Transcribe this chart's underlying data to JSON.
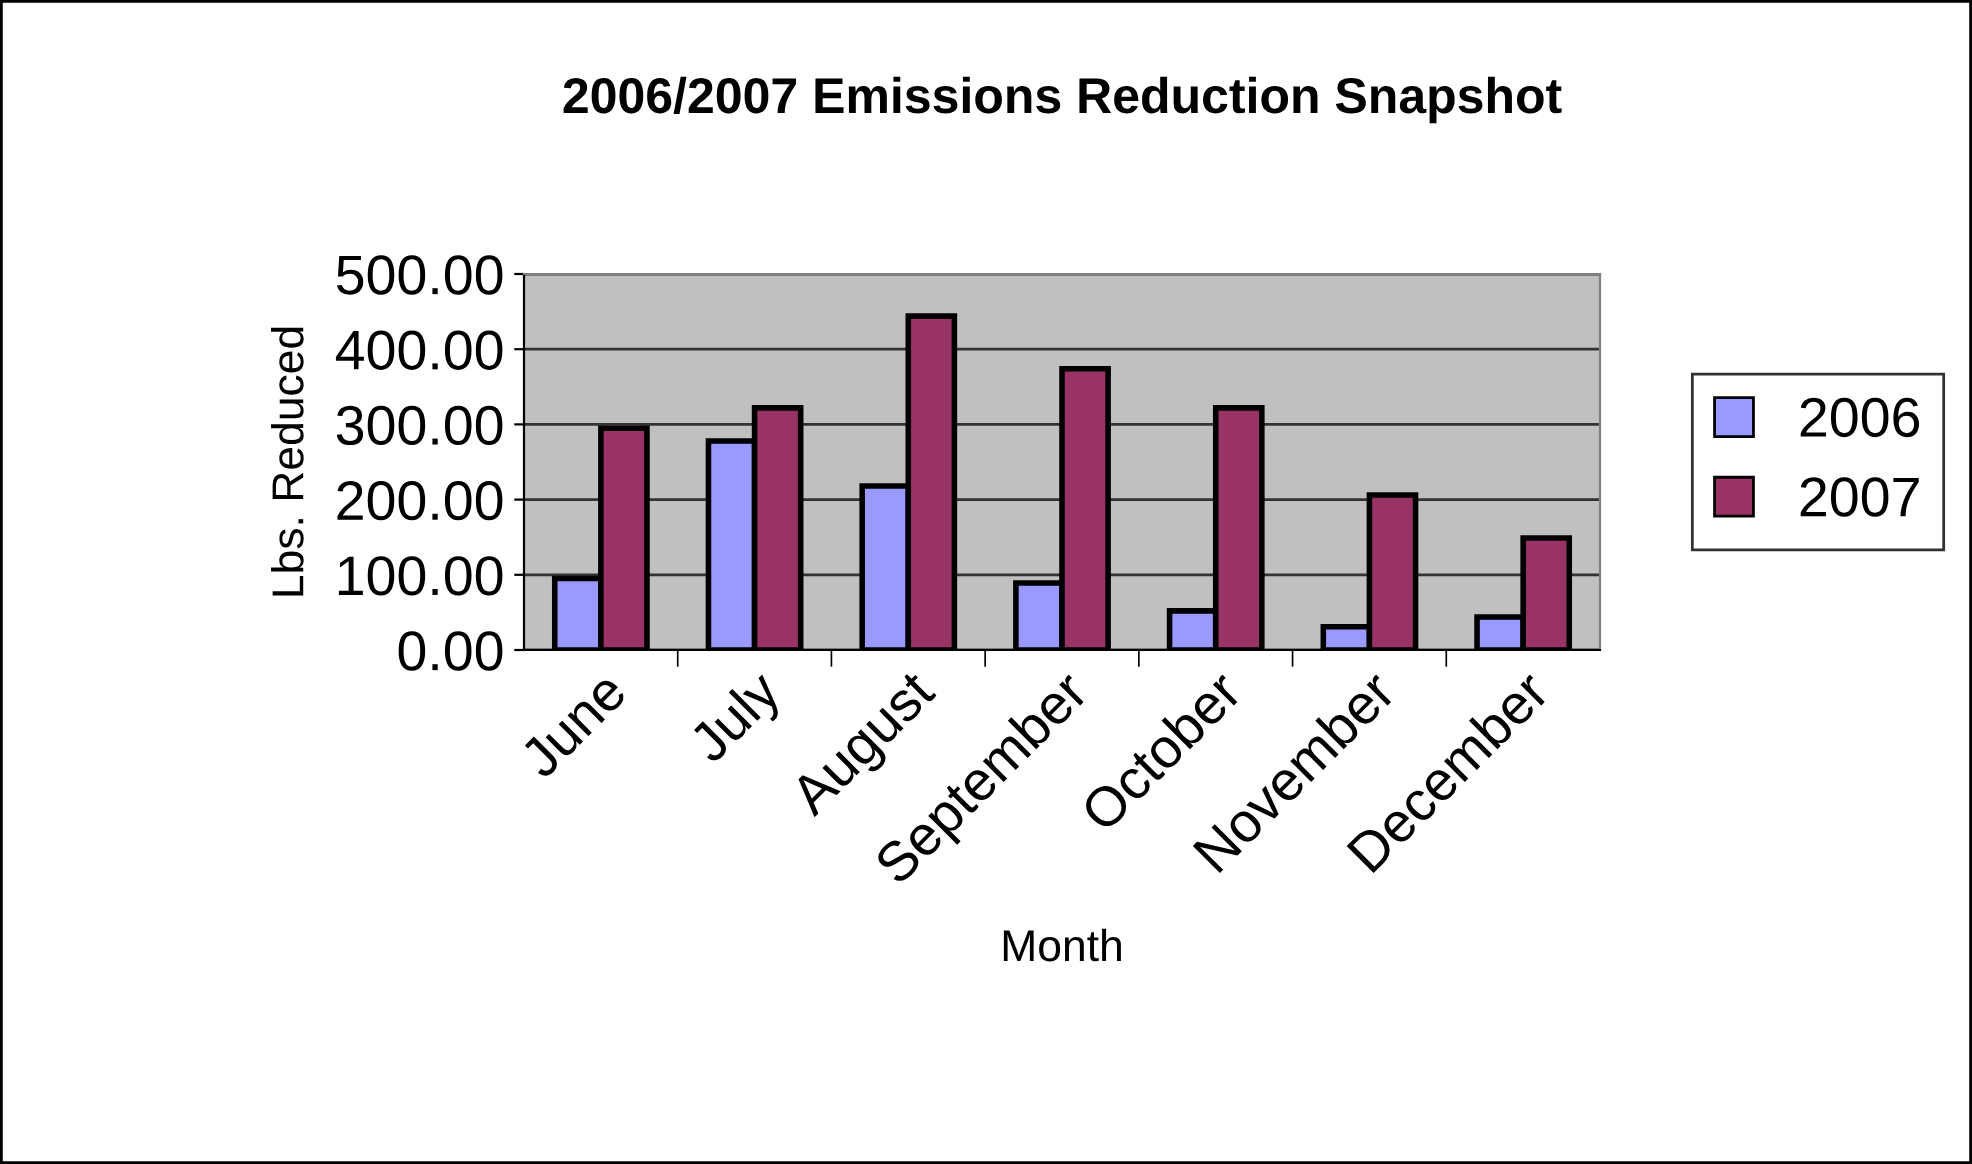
{
  "chart_data": {
    "type": "bar",
    "title": "2006/2007 Emissions Reduction Snapshot",
    "xlabel": "Month",
    "ylabel": "Lbs. Reduced",
    "categories": [
      "June",
      "July",
      "August",
      "September",
      "October",
      "November",
      "December"
    ],
    "series": [
      {
        "name": "2006",
        "color": "#9999ff",
        "values": [
          95,
          278,
          218,
          89,
          52,
          31,
          44
        ]
      },
      {
        "name": "2007",
        "color": "#993366",
        "values": [
          295,
          322,
          444,
          374,
          322,
          206,
          149
        ]
      }
    ],
    "ylim": [
      0,
      500
    ],
    "yticks": [
      {
        "value": 0,
        "label": "0.00"
      },
      {
        "value": 100,
        "label": "100.00"
      },
      {
        "value": 200,
        "label": "200.00"
      },
      {
        "value": 300,
        "label": "300.00"
      },
      {
        "value": 400,
        "label": "400.00"
      },
      {
        "value": 500,
        "label": "500.00"
      }
    ],
    "grid": "y",
    "legend": "right"
  }
}
